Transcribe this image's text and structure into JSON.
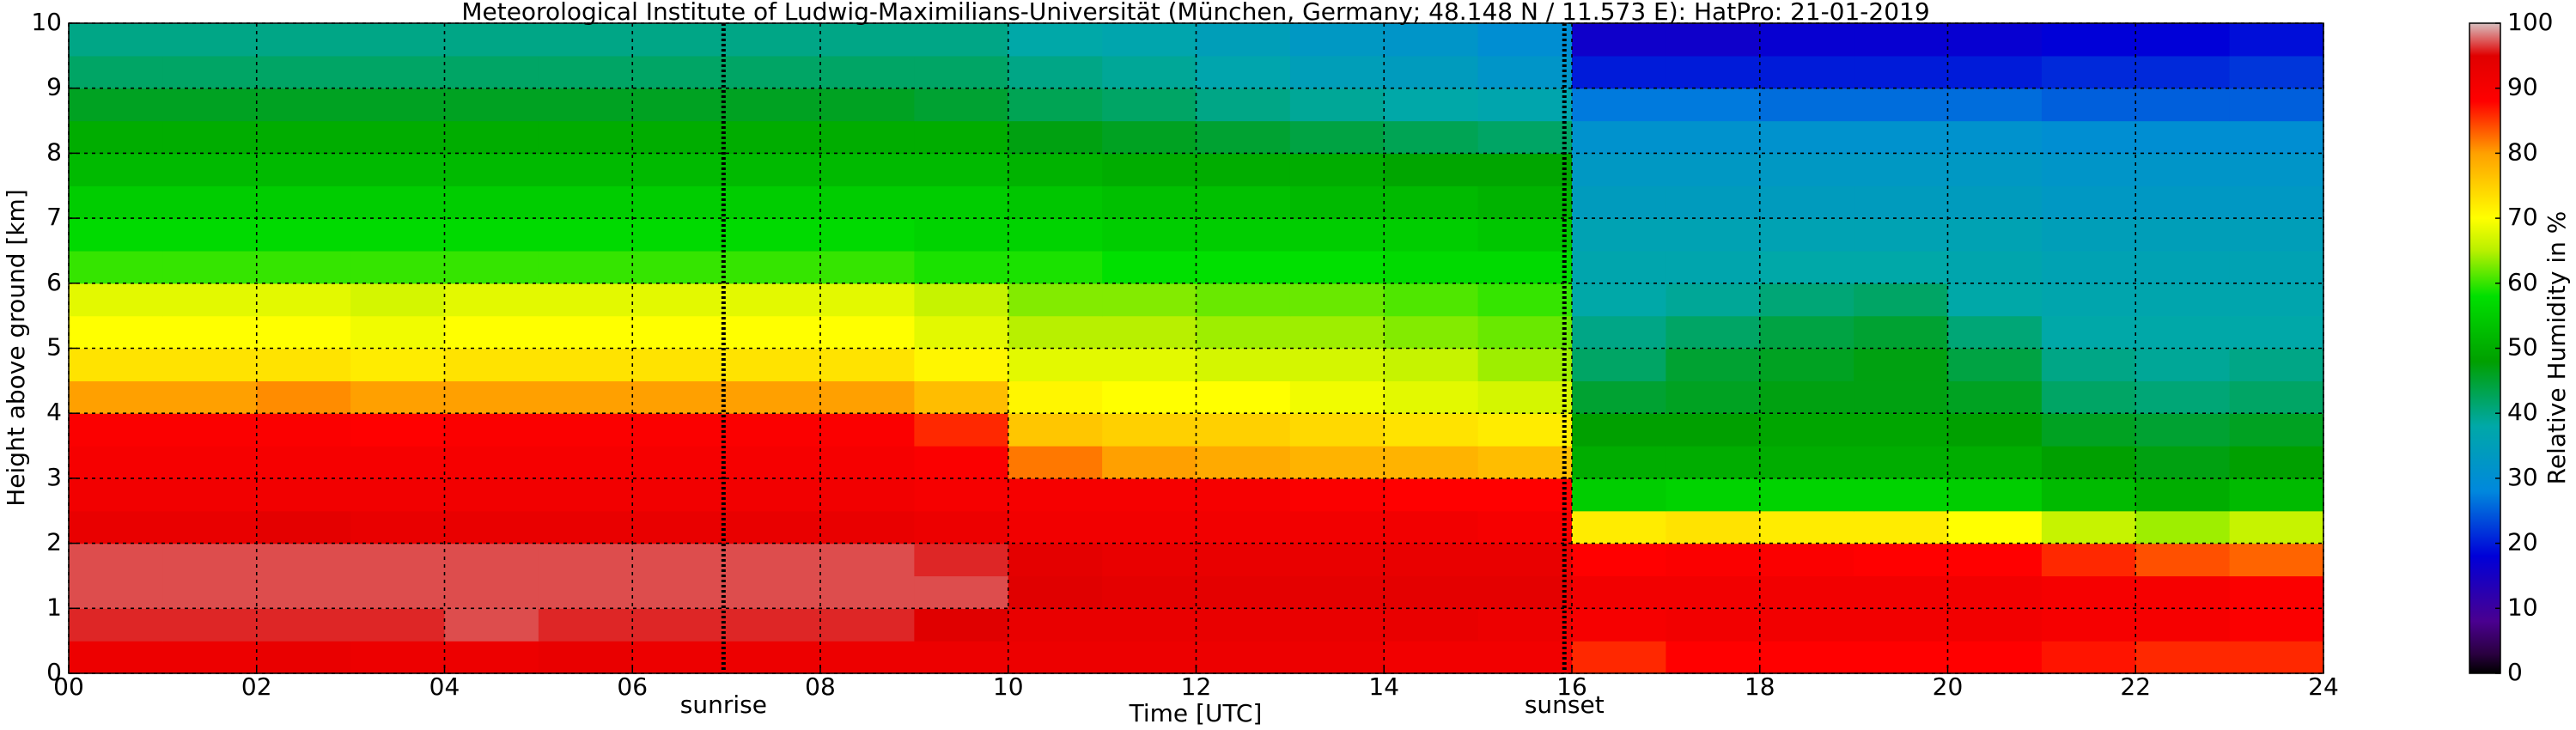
{
  "chart_data": {
    "type": "heatmap",
    "title": "Meteorological Institute of Ludwig-Maximilians-Universität (München, Germany; 48.148 N / 11.573 E):    HatPro: 21-01-2019",
    "x_label": "Time [UTC]",
    "y_label": "Height above ground [km]",
    "colorbar_label": "Relative Humidity in %",
    "x_bins": [
      0,
      1,
      2,
      3,
      4,
      5,
      6,
      7,
      8,
      9,
      10,
      11,
      12,
      13,
      14,
      15,
      16,
      17,
      18,
      19,
      20,
      21,
      22,
      23,
      24
    ],
    "y_bins": [
      0,
      0.5,
      1,
      1.5,
      2,
      2.5,
      3,
      3.5,
      4,
      4.5,
      5,
      5.5,
      6,
      6.5,
      7,
      7.5,
      8,
      8.5,
      9,
      9.5,
      10
    ],
    "values": [
      [
        92,
        92,
        93,
        92,
        92,
        93,
        92,
        92,
        92,
        92,
        92,
        92,
        92,
        92,
        91,
        91,
        86,
        88,
        88,
        88,
        88,
        87,
        86,
        86
      ],
      [
        96,
        96,
        96,
        96,
        97,
        96,
        96,
        96,
        96,
        95,
        93,
        93,
        93,
        93,
        93,
        92,
        90,
        91,
        91,
        91,
        91,
        90,
        90,
        89
      ],
      [
        97,
        97,
        97,
        97,
        97,
        97,
        97,
        97,
        97,
        97,
        95,
        94,
        94,
        94,
        94,
        94,
        91,
        91,
        91,
        91,
        91,
        90,
        90,
        89
      ],
      [
        97,
        97,
        97,
        97,
        97,
        97,
        97,
        97,
        97,
        96,
        94,
        93,
        93,
        93,
        93,
        93,
        88,
        89,
        89,
        88,
        88,
        86,
        84,
        83
      ],
      [
        93,
        93,
        94,
        93,
        93,
        93,
        93,
        93,
        93,
        92,
        91,
        91,
        91,
        91,
        91,
        90,
        72,
        73,
        72,
        72,
        70,
        66,
        64,
        66
      ],
      [
        91,
        91,
        91,
        91,
        91,
        91,
        91,
        91,
        91,
        90,
        90,
        90,
        90,
        89,
        88,
        88,
        55,
        56,
        56,
        56,
        55,
        52,
        50,
        52
      ],
      [
        90,
        90,
        90,
        90,
        90,
        90,
        90,
        90,
        90,
        89,
        82,
        80,
        79,
        78,
        78,
        77,
        50,
        50,
        50,
        50,
        50,
        48,
        47,
        48
      ],
      [
        89,
        89,
        89,
        88,
        89,
        89,
        89,
        89,
        89,
        86,
        76,
        75,
        75,
        74,
        73,
        72,
        48,
        48,
        49,
        49,
        48,
        46,
        45,
        46
      ],
      [
        80,
        80,
        81,
        80,
        80,
        80,
        80,
        80,
        80,
        77,
        71,
        70,
        70,
        69,
        68,
        67,
        45,
        46,
        47,
        47,
        46,
        42,
        41,
        42
      ],
      [
        73,
        73,
        73,
        72,
        73,
        73,
        73,
        73,
        73,
        71,
        68,
        68,
        67,
        67,
        66,
        64,
        42,
        45,
        46,
        47,
        44,
        40,
        39,
        40
      ],
      [
        70,
        70,
        70,
        69,
        70,
        70,
        70,
        70,
        70,
        68,
        65,
        65,
        64,
        64,
        63,
        62,
        40,
        42,
        44,
        45,
        41,
        38,
        38,
        38
      ],
      [
        68,
        68,
        68,
        67,
        68,
        68,
        68,
        68,
        68,
        66,
        63,
        63,
        62,
        62,
        61,
        60,
        38,
        39,
        41,
        42,
        38,
        37,
        37,
        37
      ],
      [
        60,
        60,
        60,
        60,
        60,
        60,
        60,
        60,
        60,
        59,
        59,
        58,
        58,
        58,
        57,
        57,
        37,
        37,
        38,
        38,
        37,
        36,
        36,
        36
      ],
      [
        57,
        57,
        57,
        57,
        57,
        57,
        57,
        57,
        57,
        56,
        56,
        55,
        55,
        55,
        55,
        54,
        36,
        36,
        36,
        36,
        36,
        35,
        35,
        35
      ],
      [
        55,
        55,
        55,
        55,
        55,
        55,
        55,
        55,
        55,
        55,
        54,
        53,
        53,
        52,
        52,
        51,
        34,
        34,
        34,
        34,
        34,
        33,
        33,
        33
      ],
      [
        52,
        52,
        52,
        52,
        52,
        52,
        52,
        52,
        52,
        52,
        51,
        50,
        50,
        50,
        49,
        49,
        33,
        33,
        33,
        33,
        33,
        32,
        32,
        32
      ],
      [
        50,
        50,
        50,
        50,
        50,
        50,
        50,
        50,
        50,
        50,
        47,
        46,
        45,
        44,
        43,
        42,
        31,
        31,
        31,
        31,
        31,
        30,
        30,
        30
      ],
      [
        46,
        46,
        46,
        46,
        46,
        46,
        46,
        46,
        46,
        45,
        43,
        42,
        40,
        39,
        38,
        37,
        27,
        27,
        26,
        26,
        26,
        25,
        25,
        25
      ],
      [
        42,
        42,
        42,
        42,
        42,
        42,
        42,
        42,
        42,
        42,
        40,
        39,
        37,
        35,
        34,
        32,
        20,
        20,
        20,
        20,
        20,
        21,
        21,
        22
      ],
      [
        40,
        40,
        40,
        40,
        40,
        40,
        40,
        40,
        40,
        40,
        38,
        37,
        35,
        33,
        32,
        30,
        16,
        16,
        17,
        17,
        17,
        18,
        18,
        19
      ]
    ],
    "xlim": [
      0,
      24
    ],
    "xticks": [
      {
        "value": 0,
        "label": "00"
      },
      {
        "value": 2,
        "label": "02"
      },
      {
        "value": 4,
        "label": "04"
      },
      {
        "value": 6,
        "label": "06"
      },
      {
        "value": 8,
        "label": "08"
      },
      10,
      12,
      14,
      16,
      18,
      20,
      22,
      24
    ],
    "ylim": [
      0,
      10
    ],
    "yticks": [
      0,
      1,
      2,
      3,
      4,
      5,
      6,
      7,
      8,
      9,
      10
    ],
    "clim": [
      0,
      100
    ],
    "cticks": [
      0,
      10,
      20,
      30,
      40,
      50,
      60,
      70,
      80,
      90,
      100
    ],
    "colormap": [
      {
        "value": 0,
        "color": "#000000"
      },
      {
        "value": 3,
        "color": "#2a0040"
      },
      {
        "value": 8,
        "color": "#4a0090"
      },
      {
        "value": 18,
        "color": "#0000d8"
      },
      {
        "value": 28,
        "color": "#0088dd"
      },
      {
        "value": 38,
        "color": "#00a8a8"
      },
      {
        "value": 48,
        "color": "#00a000"
      },
      {
        "value": 58,
        "color": "#00e000"
      },
      {
        "value": 65,
        "color": "#b8f000"
      },
      {
        "value": 70,
        "color": "#ffff00"
      },
      {
        "value": 80,
        "color": "#ffa000"
      },
      {
        "value": 88,
        "color": "#ff0000"
      },
      {
        "value": 95,
        "color": "#e00000"
      },
      {
        "value": 100,
        "color": "#d8c0c0"
      }
    ],
    "grid": true,
    "annotations": [
      {
        "text": "sunrise",
        "x": 6.97
      },
      {
        "text": "sunset",
        "x": 15.92
      }
    ]
  }
}
